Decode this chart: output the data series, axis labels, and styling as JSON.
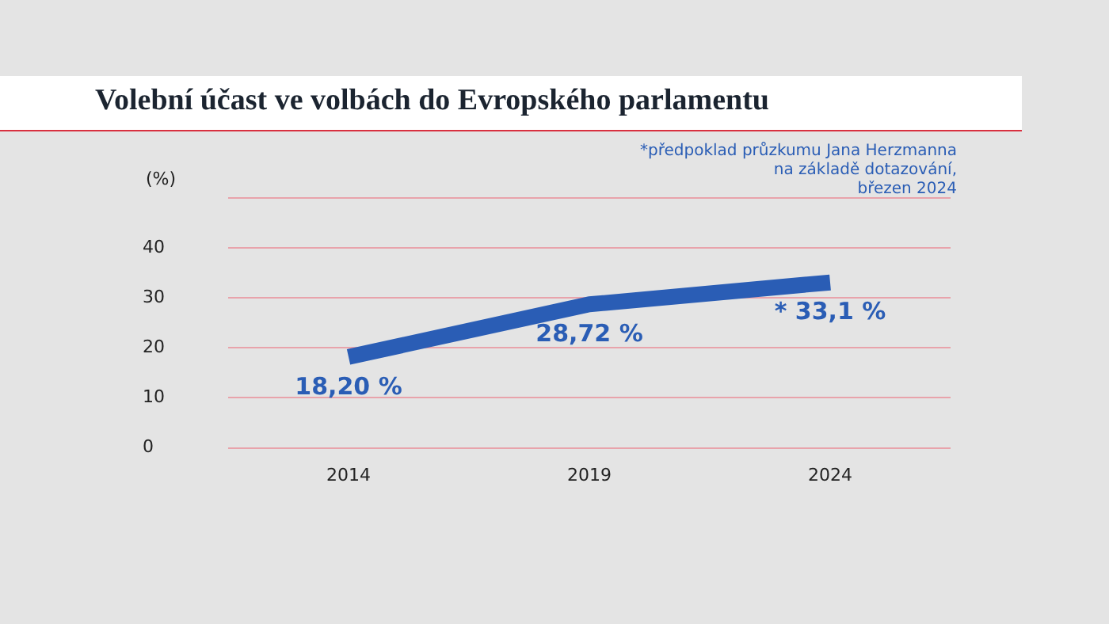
{
  "chart_data": {
    "type": "line",
    "title": "Volební účast ve volbách do Evropského parlamentu",
    "ylabel": "(%)",
    "annotations": [
      "*předpoklad průzkumu Jana Herzmanna\nna základě dotazování,\nbřezen 2024"
    ],
    "categories": [
      "2014",
      "2019",
      "2024"
    ],
    "series": [
      {
        "color": "#2a5db5",
        "values": [
          18.2,
          28.72,
          33.1
        ],
        "value_labels": [
          "18,20 %",
          "28,72 %",
          "* 33,1 %"
        ]
      }
    ],
    "ylim": [
      0,
      50
    ],
    "yticks": [
      0,
      10,
      20,
      30,
      40,
      {
        "value": 50,
        "label": null
      }
    ],
    "grid": "y",
    "legend": false,
    "marker": "none",
    "line_style": "solid"
  }
}
